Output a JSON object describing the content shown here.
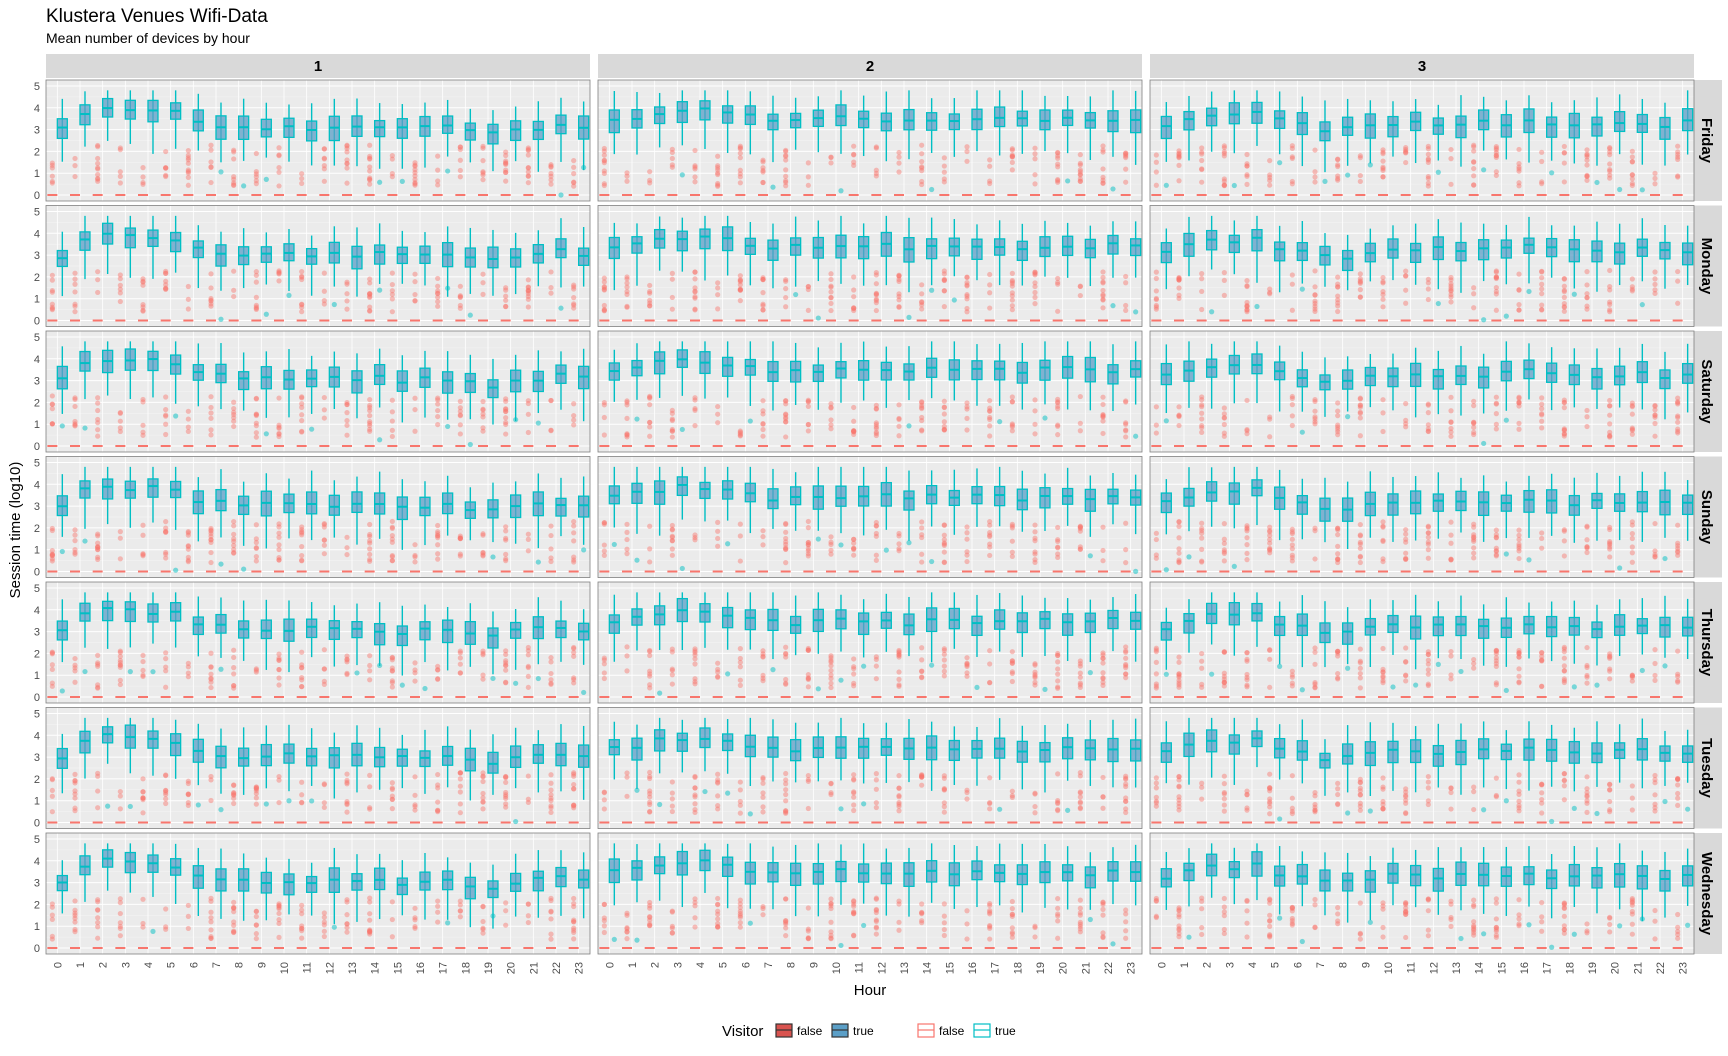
{
  "chart_data": {
    "type": "boxplot",
    "title": "Klustera Venues Wifi-Data",
    "subtitle": "Mean number of devices by hour",
    "xlabel": "Hour",
    "ylabel": "Session time (log10)",
    "ylim": [
      0,
      5
    ],
    "y_ticks": [
      "0",
      "1",
      "2",
      "3",
      "4",
      "5"
    ],
    "x_categories": [
      "0",
      "1",
      "2",
      "3",
      "4",
      "5",
      "6",
      "7",
      "8",
      "9",
      "10",
      "11",
      "12",
      "13",
      "14",
      "15",
      "16",
      "17",
      "18",
      "19",
      "20",
      "21",
      "22",
      "23"
    ],
    "facet_columns": [
      "1",
      "2",
      "3"
    ],
    "facet_rows": [
      "Friday",
      "Monday",
      "Saturday",
      "Sunday",
      "Thursday",
      "Tuesday",
      "Wednesday"
    ],
    "legend": {
      "title": "Visitor",
      "fill_items": [
        "false",
        "true"
      ],
      "colour_items": [
        "false",
        "true"
      ],
      "placement": "bottom"
    },
    "colors": {
      "false_line": "#F8766D",
      "true_line": "#00BFC4",
      "false_fill": "#d9534f",
      "true_fill": "#5b9fc7",
      "panel_bg": "#ebebeb",
      "strip_bg": "#d9d9d9"
    },
    "series": [
      {
        "name": "true",
        "visitor": "true",
        "note_values": "median session time (log10) per hour, column 1; other columns and rows follow similar profiles",
        "median_col1": [
          3.0,
          3.8,
          4.0,
          3.9,
          3.9,
          3.8,
          3.3,
          3.2,
          3.1,
          3.1,
          3.1,
          3.1,
          3.1,
          3.1,
          3.1,
          3.0,
          3.1,
          3.1,
          2.9,
          2.8,
          3.0,
          3.1,
          3.2,
          3.1
        ],
        "median_col2": [
          3.5,
          3.6,
          3.8,
          3.9,
          3.9,
          3.8,
          3.6,
          3.4,
          3.4,
          3.5,
          3.5,
          3.4,
          3.5,
          3.4,
          3.5,
          3.5,
          3.5,
          3.5,
          3.4,
          3.5,
          3.5,
          3.4,
          3.5,
          3.5
        ],
        "median_col3": [
          3.2,
          3.5,
          3.7,
          3.7,
          3.8,
          3.4,
          3.2,
          3.0,
          3.0,
          3.2,
          3.3,
          3.3,
          3.3,
          3.3,
          3.3,
          3.3,
          3.4,
          3.3,
          3.2,
          3.2,
          3.3,
          3.3,
          3.2,
          3.3
        ]
      },
      {
        "name": "false",
        "visitor": "false",
        "note_values": "median session time (log10) per hour; nearly always 0 with outliers spread from 0.5 to 2.3",
        "median_all": [
          0,
          0,
          0,
          0,
          0,
          0,
          0,
          0,
          0,
          0,
          0,
          0,
          0,
          0,
          0,
          0,
          0,
          0,
          0,
          0,
          0,
          0,
          0,
          0
        ]
      }
    ]
  }
}
